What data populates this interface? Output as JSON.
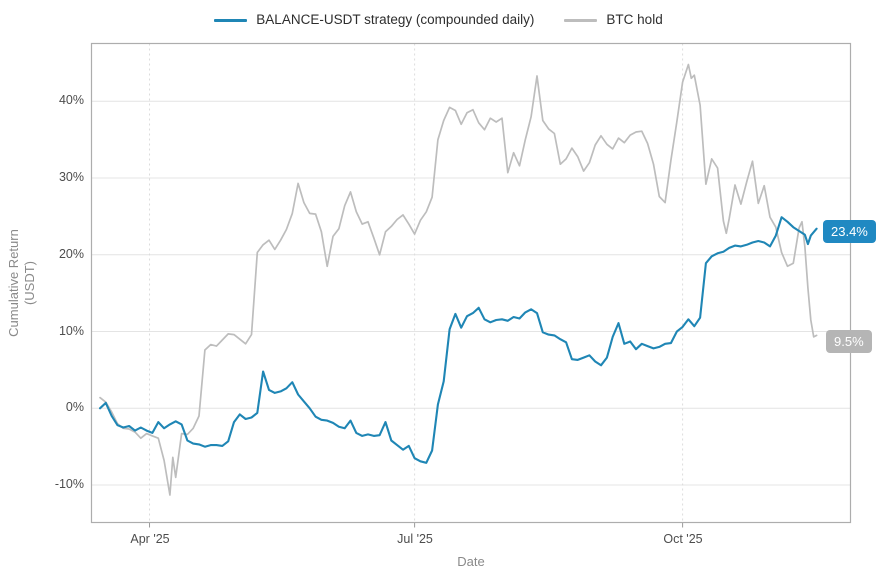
{
  "legend": {
    "items": [
      {
        "id": "strategy",
        "label": "BALANCE-USDT strategy (compounded daily)",
        "color": "#1f86b5"
      },
      {
        "id": "btc",
        "label": "BTC hold",
        "color": "#bdbdbd"
      }
    ]
  },
  "chart_data": {
    "type": "line",
    "title": "",
    "xlabel": "Date",
    "ylabel_line1": "Cumulative Return",
    "ylabel_line2": "(USDT)",
    "grid": true,
    "legend_position": "top-center",
    "ylim": [
      -14.9,
      47.7
    ],
    "xlim_days": [
      -3.1,
      257.8
    ],
    "y_ticks": [
      {
        "value": 40,
        "label": "40%"
      },
      {
        "value": 30,
        "label": "30%"
      },
      {
        "value": 20,
        "label": "20%"
      },
      {
        "value": 10,
        "label": "10%"
      },
      {
        "value": 0,
        "label": "0%"
      },
      {
        "value": -10,
        "label": "-10%"
      }
    ],
    "x_ticks": [
      {
        "day": 17,
        "label": "Apr '25"
      },
      {
        "day": 108,
        "label": "Jul '25"
      },
      {
        "day": 200,
        "label": "Oct '25"
      }
    ],
    "end_labels": {
      "strategy": {
        "text": "23.4%",
        "color": "#2089c2"
      },
      "btc": {
        "text": "9.5%",
        "color": "#b5b5b5"
      }
    },
    "series": [
      {
        "name": "BTC hold",
        "color": "#bdbdbd",
        "width": 1.7,
        "end_value_pct": 9.5,
        "points": [
          [
            0,
            1.4
          ],
          [
            2,
            0.8
          ],
          [
            4,
            -0.5
          ],
          [
            6,
            -2.0
          ],
          [
            8,
            -2.6
          ],
          [
            10,
            -2.7
          ],
          [
            12,
            -3.1
          ],
          [
            14,
            -3.9
          ],
          [
            16,
            -3.3
          ],
          [
            18,
            -3.6
          ],
          [
            20,
            -3.9
          ],
          [
            22,
            -6.8
          ],
          [
            24,
            -11.3
          ],
          [
            25,
            -6.4
          ],
          [
            26,
            -9.0
          ],
          [
            28,
            -3.3
          ],
          [
            30,
            -3.4
          ],
          [
            32,
            -2.6
          ],
          [
            34,
            -1.0
          ],
          [
            36,
            7.6
          ],
          [
            38,
            8.3
          ],
          [
            40,
            8.1
          ],
          [
            42,
            8.9
          ],
          [
            44,
            9.7
          ],
          [
            46,
            9.6
          ],
          [
            48,
            9.0
          ],
          [
            50,
            8.4
          ],
          [
            52,
            9.6
          ],
          [
            54,
            20.3
          ],
          [
            56,
            21.3
          ],
          [
            58,
            21.9
          ],
          [
            60,
            20.7
          ],
          [
            62,
            21.9
          ],
          [
            64,
            23.3
          ],
          [
            66,
            25.4
          ],
          [
            68,
            29.3
          ],
          [
            70,
            26.8
          ],
          [
            72,
            25.4
          ],
          [
            74,
            25.3
          ],
          [
            76,
            23.0
          ],
          [
            78,
            18.5
          ],
          [
            80,
            22.4
          ],
          [
            82,
            23.4
          ],
          [
            84,
            26.4
          ],
          [
            86,
            28.2
          ],
          [
            88,
            25.6
          ],
          [
            90,
            24.0
          ],
          [
            92,
            24.3
          ],
          [
            94,
            22.2
          ],
          [
            96,
            20.0
          ],
          [
            98,
            23.0
          ],
          [
            100,
            23.7
          ],
          [
            102,
            24.6
          ],
          [
            104,
            25.2
          ],
          [
            106,
            24.0
          ],
          [
            108,
            22.7
          ],
          [
            110,
            24.5
          ],
          [
            112,
            25.6
          ],
          [
            114,
            27.5
          ],
          [
            116,
            35.0
          ],
          [
            118,
            37.5
          ],
          [
            120,
            39.2
          ],
          [
            122,
            38.8
          ],
          [
            124,
            37.0
          ],
          [
            126,
            38.5
          ],
          [
            128,
            38.9
          ],
          [
            130,
            37.2
          ],
          [
            132,
            36.3
          ],
          [
            134,
            37.8
          ],
          [
            136,
            37.3
          ],
          [
            138,
            37.8
          ],
          [
            140,
            30.7
          ],
          [
            142,
            33.3
          ],
          [
            144,
            31.6
          ],
          [
            146,
            35.0
          ],
          [
            148,
            38.0
          ],
          [
            150,
            43.3
          ],
          [
            152,
            37.5
          ],
          [
            154,
            36.4
          ],
          [
            156,
            35.8
          ],
          [
            158,
            31.8
          ],
          [
            160,
            32.5
          ],
          [
            162,
            33.9
          ],
          [
            164,
            32.8
          ],
          [
            166,
            30.9
          ],
          [
            168,
            32.0
          ],
          [
            170,
            34.3
          ],
          [
            172,
            35.5
          ],
          [
            174,
            34.4
          ],
          [
            176,
            33.8
          ],
          [
            178,
            35.2
          ],
          [
            180,
            34.6
          ],
          [
            182,
            35.6
          ],
          [
            184,
            36.0
          ],
          [
            186,
            36.1
          ],
          [
            188,
            34.5
          ],
          [
            190,
            31.8
          ],
          [
            192,
            27.6
          ],
          [
            194,
            26.8
          ],
          [
            196,
            32.3
          ],
          [
            198,
            37.3
          ],
          [
            200,
            42.5
          ],
          [
            202,
            44.8
          ],
          [
            203,
            43.0
          ],
          [
            204,
            43.4
          ],
          [
            206,
            39.5
          ],
          [
            208,
            29.2
          ],
          [
            210,
            32.5
          ],
          [
            212,
            31.3
          ],
          [
            214,
            24.4
          ],
          [
            215,
            22.8
          ],
          [
            216,
            24.7
          ],
          [
            218,
            29.1
          ],
          [
            220,
            26.6
          ],
          [
            222,
            29.5
          ],
          [
            224,
            32.2
          ],
          [
            226,
            26.7
          ],
          [
            228,
            29.0
          ],
          [
            230,
            24.9
          ],
          [
            232,
            23.6
          ],
          [
            234,
            20.3
          ],
          [
            236,
            18.5
          ],
          [
            238,
            18.9
          ],
          [
            240,
            23.5
          ],
          [
            241,
            24.3
          ],
          [
            242,
            21.0
          ],
          [
            243,
            15.7
          ],
          [
            244,
            11.5
          ],
          [
            245,
            9.3
          ],
          [
            246,
            9.5
          ]
        ]
      },
      {
        "name": "BALANCE-USDT strategy (compounded daily)",
        "color": "#1f86b5",
        "width": 2.1,
        "end_value_pct": 23.4,
        "points": [
          [
            0,
            0.0
          ],
          [
            2,
            0.7
          ],
          [
            4,
            -1.0
          ],
          [
            6,
            -2.2
          ],
          [
            8,
            -2.5
          ],
          [
            10,
            -2.3
          ],
          [
            12,
            -2.9
          ],
          [
            14,
            -2.5
          ],
          [
            16,
            -2.9
          ],
          [
            18,
            -3.2
          ],
          [
            20,
            -1.8
          ],
          [
            22,
            -2.6
          ],
          [
            24,
            -2.1
          ],
          [
            26,
            -1.7
          ],
          [
            28,
            -2.1
          ],
          [
            30,
            -4.2
          ],
          [
            32,
            -4.6
          ],
          [
            34,
            -4.7
          ],
          [
            36,
            -5.0
          ],
          [
            38,
            -4.8
          ],
          [
            40,
            -4.8
          ],
          [
            42,
            -4.9
          ],
          [
            44,
            -4.3
          ],
          [
            46,
            -1.8
          ],
          [
            48,
            -0.8
          ],
          [
            50,
            -1.4
          ],
          [
            52,
            -1.2
          ],
          [
            54,
            -0.6
          ],
          [
            56,
            4.8
          ],
          [
            58,
            2.4
          ],
          [
            60,
            2.0
          ],
          [
            62,
            2.2
          ],
          [
            64,
            2.6
          ],
          [
            66,
            3.4
          ],
          [
            68,
            1.8
          ],
          [
            70,
            0.9
          ],
          [
            72,
            0.0
          ],
          [
            74,
            -1.1
          ],
          [
            76,
            -1.5
          ],
          [
            78,
            -1.6
          ],
          [
            80,
            -1.9
          ],
          [
            82,
            -2.4
          ],
          [
            84,
            -2.6
          ],
          [
            86,
            -1.6
          ],
          [
            88,
            -3.2
          ],
          [
            90,
            -3.6
          ],
          [
            92,
            -3.4
          ],
          [
            94,
            -3.6
          ],
          [
            96,
            -3.5
          ],
          [
            98,
            -1.8
          ],
          [
            100,
            -4.2
          ],
          [
            102,
            -4.8
          ],
          [
            104,
            -5.4
          ],
          [
            106,
            -4.9
          ],
          [
            108,
            -6.5
          ],
          [
            110,
            -6.9
          ],
          [
            112,
            -7.1
          ],
          [
            114,
            -5.5
          ],
          [
            116,
            0.5
          ],
          [
            118,
            3.5
          ],
          [
            120,
            10.3
          ],
          [
            122,
            12.3
          ],
          [
            124,
            10.5
          ],
          [
            126,
            12.0
          ],
          [
            128,
            12.4
          ],
          [
            130,
            13.1
          ],
          [
            132,
            11.6
          ],
          [
            134,
            11.2
          ],
          [
            136,
            11.5
          ],
          [
            138,
            11.6
          ],
          [
            140,
            11.4
          ],
          [
            142,
            11.9
          ],
          [
            144,
            11.7
          ],
          [
            146,
            12.5
          ],
          [
            148,
            12.9
          ],
          [
            150,
            12.4
          ],
          [
            152,
            9.9
          ],
          [
            154,
            9.6
          ],
          [
            156,
            9.5
          ],
          [
            158,
            9.0
          ],
          [
            160,
            8.6
          ],
          [
            162,
            6.4
          ],
          [
            164,
            6.3
          ],
          [
            166,
            6.6
          ],
          [
            168,
            6.9
          ],
          [
            170,
            6.1
          ],
          [
            172,
            5.6
          ],
          [
            174,
            6.6
          ],
          [
            176,
            9.3
          ],
          [
            178,
            11.1
          ],
          [
            180,
            8.4
          ],
          [
            182,
            8.7
          ],
          [
            184,
            7.7
          ],
          [
            186,
            8.4
          ],
          [
            188,
            8.1
          ],
          [
            190,
            7.8
          ],
          [
            192,
            8.0
          ],
          [
            194,
            8.4
          ],
          [
            196,
            8.5
          ],
          [
            198,
            10.0
          ],
          [
            200,
            10.6
          ],
          [
            202,
            11.6
          ],
          [
            204,
            10.7
          ],
          [
            206,
            11.8
          ],
          [
            208,
            18.9
          ],
          [
            210,
            19.8
          ],
          [
            212,
            20.2
          ],
          [
            214,
            20.4
          ],
          [
            216,
            20.9
          ],
          [
            218,
            21.2
          ],
          [
            220,
            21.1
          ],
          [
            222,
            21.3
          ],
          [
            224,
            21.6
          ],
          [
            226,
            21.8
          ],
          [
            228,
            21.6
          ],
          [
            230,
            21.1
          ],
          [
            232,
            22.5
          ],
          [
            234,
            24.9
          ],
          [
            236,
            24.3
          ],
          [
            238,
            23.6
          ],
          [
            240,
            23.1
          ],
          [
            242,
            22.6
          ],
          [
            243,
            21.4
          ],
          [
            244,
            22.5
          ],
          [
            246,
            23.4
          ]
        ]
      }
    ]
  }
}
